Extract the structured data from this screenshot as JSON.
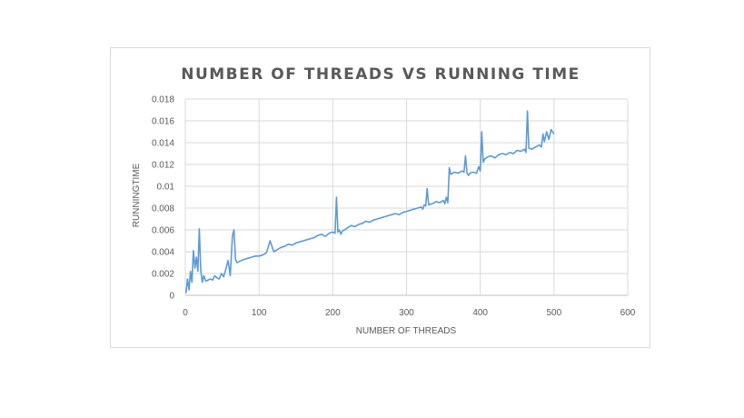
{
  "chart_data": {
    "type": "line",
    "title": "NUMBER OF THREADS VS RUNNING TIME",
    "xlabel": "NUMBER OF THREADS",
    "ylabel": "RUNNINGTIME",
    "xlim": [
      0,
      600
    ],
    "ylim": [
      0,
      0.018
    ],
    "x_ticks": [
      "0",
      "100",
      "200",
      "300",
      "400",
      "500",
      "600"
    ],
    "y_ticks": [
      "0",
      "0.002",
      "0.004",
      "0.006",
      "0.008",
      "0.01",
      "0.012",
      "0.014",
      "0.016",
      "0.018"
    ],
    "grid": true,
    "legend": "none",
    "color": "#5b9bd5",
    "series": [
      {
        "x": [
          1,
          3,
          5,
          7,
          9,
          11,
          13,
          15,
          17,
          19,
          21,
          23,
          25,
          28,
          31,
          34,
          37,
          40,
          43,
          46,
          49,
          52,
          55,
          58,
          61,
          64,
          66,
          68,
          70,
          73,
          76,
          80,
          85,
          90,
          95,
          100,
          105,
          110,
          115,
          120,
          125,
          130,
          135,
          140,
          145,
          150,
          155,
          160,
          165,
          170,
          175,
          180,
          185,
          190,
          195,
          200,
          203,
          205,
          207,
          209,
          211,
          213,
          216,
          220,
          225,
          230,
          235,
          240,
          245,
          250,
          255,
          260,
          265,
          270,
          275,
          280,
          285,
          290,
          295,
          300,
          305,
          310,
          315,
          320,
          322,
          324,
          326,
          328,
          330,
          335,
          340,
          345,
          350,
          352,
          354,
          356,
          358,
          360,
          365,
          370,
          375,
          378,
          380,
          382,
          384,
          386,
          390,
          395,
          398,
          400,
          402,
          404,
          406,
          410,
          415,
          420,
          425,
          430,
          435,
          440,
          445,
          450,
          455,
          460,
          462,
          464,
          466,
          470,
          475,
          480,
          483,
          485,
          487,
          490,
          493,
          496,
          500
        ],
        "y": [
          0.0002,
          0.0015,
          0.0005,
          0.0022,
          0.0012,
          0.0041,
          0.0025,
          0.0035,
          0.0022,
          0.0061,
          0.0023,
          0.0012,
          0.0018,
          0.0013,
          0.0014,
          0.0015,
          0.0014,
          0.0018,
          0.0016,
          0.0015,
          0.002,
          0.0017,
          0.0024,
          0.0032,
          0.0018,
          0.0055,
          0.006,
          0.0033,
          0.003,
          0.0031,
          0.0032,
          0.0033,
          0.0034,
          0.0035,
          0.0036,
          0.0036,
          0.0037,
          0.0039,
          0.005,
          0.004,
          0.0042,
          0.0044,
          0.0045,
          0.0047,
          0.0046,
          0.0048,
          0.0049,
          0.005,
          0.0051,
          0.0052,
          0.0053,
          0.0055,
          0.0056,
          0.0054,
          0.0057,
          0.0058,
          0.0057,
          0.009,
          0.0058,
          0.006,
          0.0056,
          0.0059,
          0.006,
          0.0062,
          0.0064,
          0.0063,
          0.0065,
          0.0066,
          0.0068,
          0.0067,
          0.0069,
          0.007,
          0.0071,
          0.0072,
          0.0073,
          0.0074,
          0.0075,
          0.0074,
          0.0076,
          0.0077,
          0.0078,
          0.0079,
          0.008,
          0.0081,
          0.0079,
          0.0083,
          0.0082,
          0.0098,
          0.0083,
          0.0084,
          0.0086,
          0.0085,
          0.0087,
          0.0084,
          0.009,
          0.0085,
          0.0117,
          0.0111,
          0.0113,
          0.0112,
          0.0114,
          0.0113,
          0.0128,
          0.0112,
          0.011,
          0.0112,
          0.0113,
          0.0112,
          0.0118,
          0.0114,
          0.015,
          0.0122,
          0.0125,
          0.0127,
          0.0128,
          0.0126,
          0.0129,
          0.013,
          0.0129,
          0.0131,
          0.013,
          0.0133,
          0.0132,
          0.0134,
          0.0131,
          0.0169,
          0.0135,
          0.0134,
          0.0136,
          0.0138,
          0.0136,
          0.0148,
          0.0141,
          0.015,
          0.0143,
          0.0152,
          0.0148
        ]
      }
    ]
  }
}
